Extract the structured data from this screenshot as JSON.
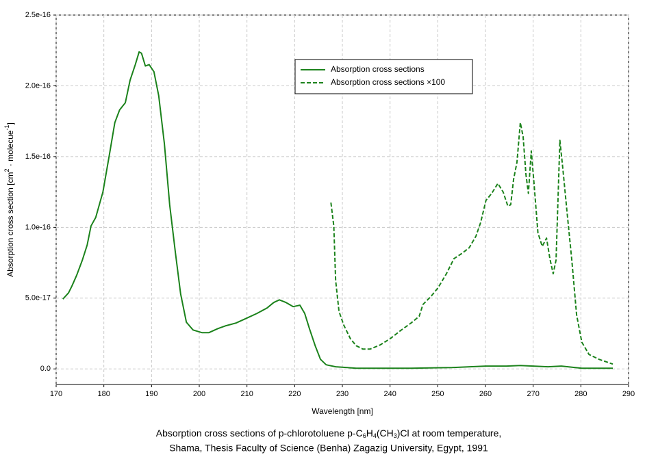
{
  "chart_data": {
    "type": "line",
    "x_label": "Wavelength [nm]",
    "y_label": [
      "Absorption cross section [cm",
      "2",
      " · molecue",
      "-1",
      "]"
    ],
    "caption_line1": [
      "Absorption cross sections of p-chlorotoluene p-C",
      "6",
      "H",
      "4",
      "(CH",
      "3",
      ")Cl at room temperature,"
    ],
    "caption_line2": "Shama, Thesis Faculty of Science (Benha) Zagazig University, Egypt, 1991",
    "xlim": [
      170,
      290
    ],
    "xticks": [
      170,
      180,
      190,
      200,
      210,
      220,
      230,
      240,
      250,
      260,
      270,
      280,
      290
    ],
    "ylim": [
      -1.1e-17,
      2.5e-16
    ],
    "yticks": [
      {
        "value": 0,
        "label": "0.0"
      },
      {
        "value": 5e-17,
        "label": "5.0e-17"
      },
      {
        "value": 1e-16,
        "label": "1.0e-16"
      },
      {
        "value": 1.5e-16,
        "label": "1.5e-16"
      },
      {
        "value": 2e-16,
        "label": "2.0e-16"
      },
      {
        "value": 2.5e-16,
        "label": "2.5e-16"
      }
    ],
    "grid": true,
    "legend": "upper center",
    "series": [
      {
        "name": "Absorption cross sections",
        "color": "#1b821b",
        "dash": false,
        "x": [
          171.4,
          172.6,
          173.3,
          174.3,
          175.5,
          176.5,
          177.3,
          178.3,
          179.8,
          181.2,
          182.3,
          183.3,
          184.5,
          185.5,
          186.6,
          187.4,
          187.9,
          188.7,
          189.5,
          190.5,
          191.5,
          192.7,
          193.8,
          195.0,
          196.1,
          197.3,
          198.7,
          200.6,
          202.0,
          203.9,
          205.6,
          207.7,
          209.9,
          212.1,
          214.2,
          215.6,
          216.8,
          218.2,
          219.7,
          221.1,
          222.1,
          223.1,
          224.3,
          225.4,
          226.6,
          228.6,
          232.9,
          244.4,
          253.0,
          260.1,
          264.4,
          267.3,
          273.1,
          275.9,
          280.2,
          286.7
        ],
        "values": [
          4.93e-17,
          5.37e-17,
          5.85e-17,
          6.62e-17,
          7.69e-17,
          8.75e-17,
          1.01e-16,
          1.07e-16,
          1.25e-16,
          1.52e-16,
          1.74e-16,
          1.83e-16,
          1.88e-16,
          2.04e-16,
          2.15e-16,
          2.24e-16,
          2.23e-16,
          2.14e-16,
          2.15e-16,
          2.1e-16,
          1.93e-16,
          1.59e-16,
          1.16e-16,
          8.2e-17,
          5.3e-17,
          3.3e-17,
          2.75e-17,
          2.56e-17,
          2.56e-17,
          2.85e-17,
          3.05e-17,
          3.24e-17,
          3.58e-17,
          3.92e-17,
          4.3e-17,
          4.69e-17,
          4.88e-17,
          4.69e-17,
          4.4e-17,
          4.5e-17,
          3.92e-17,
          2.85e-17,
          1.64e-17,
          6.8e-18,
          2.9e-18,
          1.5e-18,
          5e-19,
          5e-19,
          1e-18,
          2e-18,
          2e-18,
          2.4e-18,
          1.5e-18,
          2e-18,
          5e-19,
          5e-19
        ]
      },
      {
        "name": "Absorption cross sections ×100",
        "color": "#1b821b",
        "dash": true,
        "x": [
          227.6,
          228.2,
          228.6,
          229.3,
          230.3,
          231.7,
          232.9,
          234.3,
          235.8,
          237.9,
          240.0,
          242.2,
          244.4,
          246.1,
          246.9,
          248.7,
          250.1,
          251.8,
          253.4,
          255.1,
          256.6,
          258.0,
          259.0,
          260.1,
          261.3,
          262.6,
          263.7,
          264.7,
          265.3,
          265.9,
          266.6,
          267.3,
          267.9,
          268.5,
          269.0,
          269.6,
          270.2,
          271.0,
          271.9,
          272.8,
          273.5,
          274.2,
          274.8,
          275.6,
          276.2,
          277.1,
          278.1,
          279.1,
          280.2,
          281.7,
          283.8,
          286.7
        ],
        "values": [
          1.175e-16,
          1.01e-16,
          6.24e-17,
          4.06e-17,
          3.09e-17,
          2.13e-17,
          1.64e-17,
          1.4e-17,
          1.4e-17,
          1.69e-17,
          2.13e-17,
          2.71e-17,
          3.24e-17,
          3.72e-17,
          4.55e-17,
          5.17e-17,
          5.75e-17,
          6.72e-17,
          7.79e-17,
          8.17e-17,
          8.56e-17,
          9.38e-17,
          1.035e-16,
          1.19e-16,
          1.24e-16,
          1.31e-16,
          1.25e-16,
          1.15e-16,
          1.16e-16,
          1.34e-16,
          1.46e-16,
          1.74e-16,
          1.64e-16,
          1.37e-16,
          1.24e-16,
          1.54e-16,
          1.3e-16,
          9.62e-17,
          8.66e-17,
          9.24e-17,
          7.79e-17,
          6.72e-17,
          7.69e-17,
          1.615e-16,
          1.42e-16,
          1.11e-16,
          7.69e-17,
          3.82e-17,
          1.89e-17,
          1.02e-17,
          6.8e-18,
          3.4e-18
        ]
      }
    ]
  }
}
